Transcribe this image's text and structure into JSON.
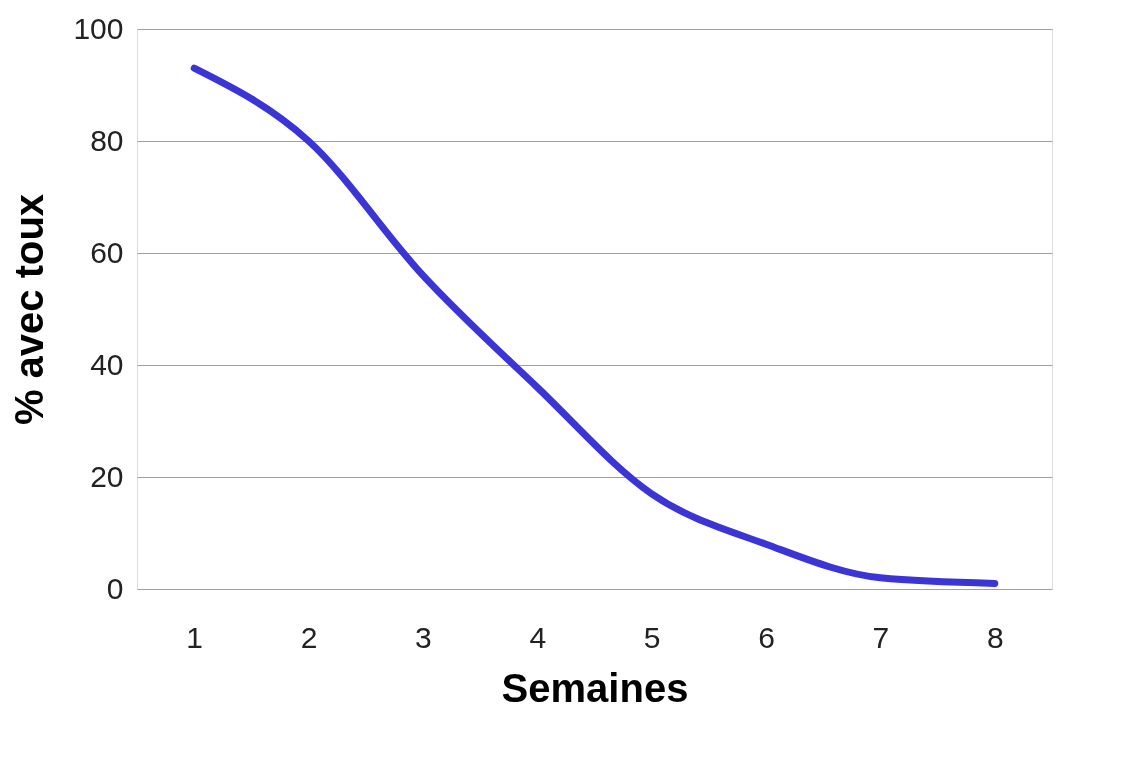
{
  "chart_data": {
    "type": "line",
    "xlabel": "Semaines",
    "ylabel": "% avec toux",
    "categories": [
      "1",
      "2",
      "3",
      "4",
      "5",
      "6",
      "7",
      "8"
    ],
    "series": [
      {
        "color": "#3a35d4",
        "values": [
          93,
          80,
          56,
          36,
          17,
          8,
          2,
          1
        ]
      }
    ],
    "ylim": [
      0,
      100
    ],
    "yticks": [
      0,
      20,
      40,
      60,
      80,
      100
    ],
    "grid": "y"
  }
}
